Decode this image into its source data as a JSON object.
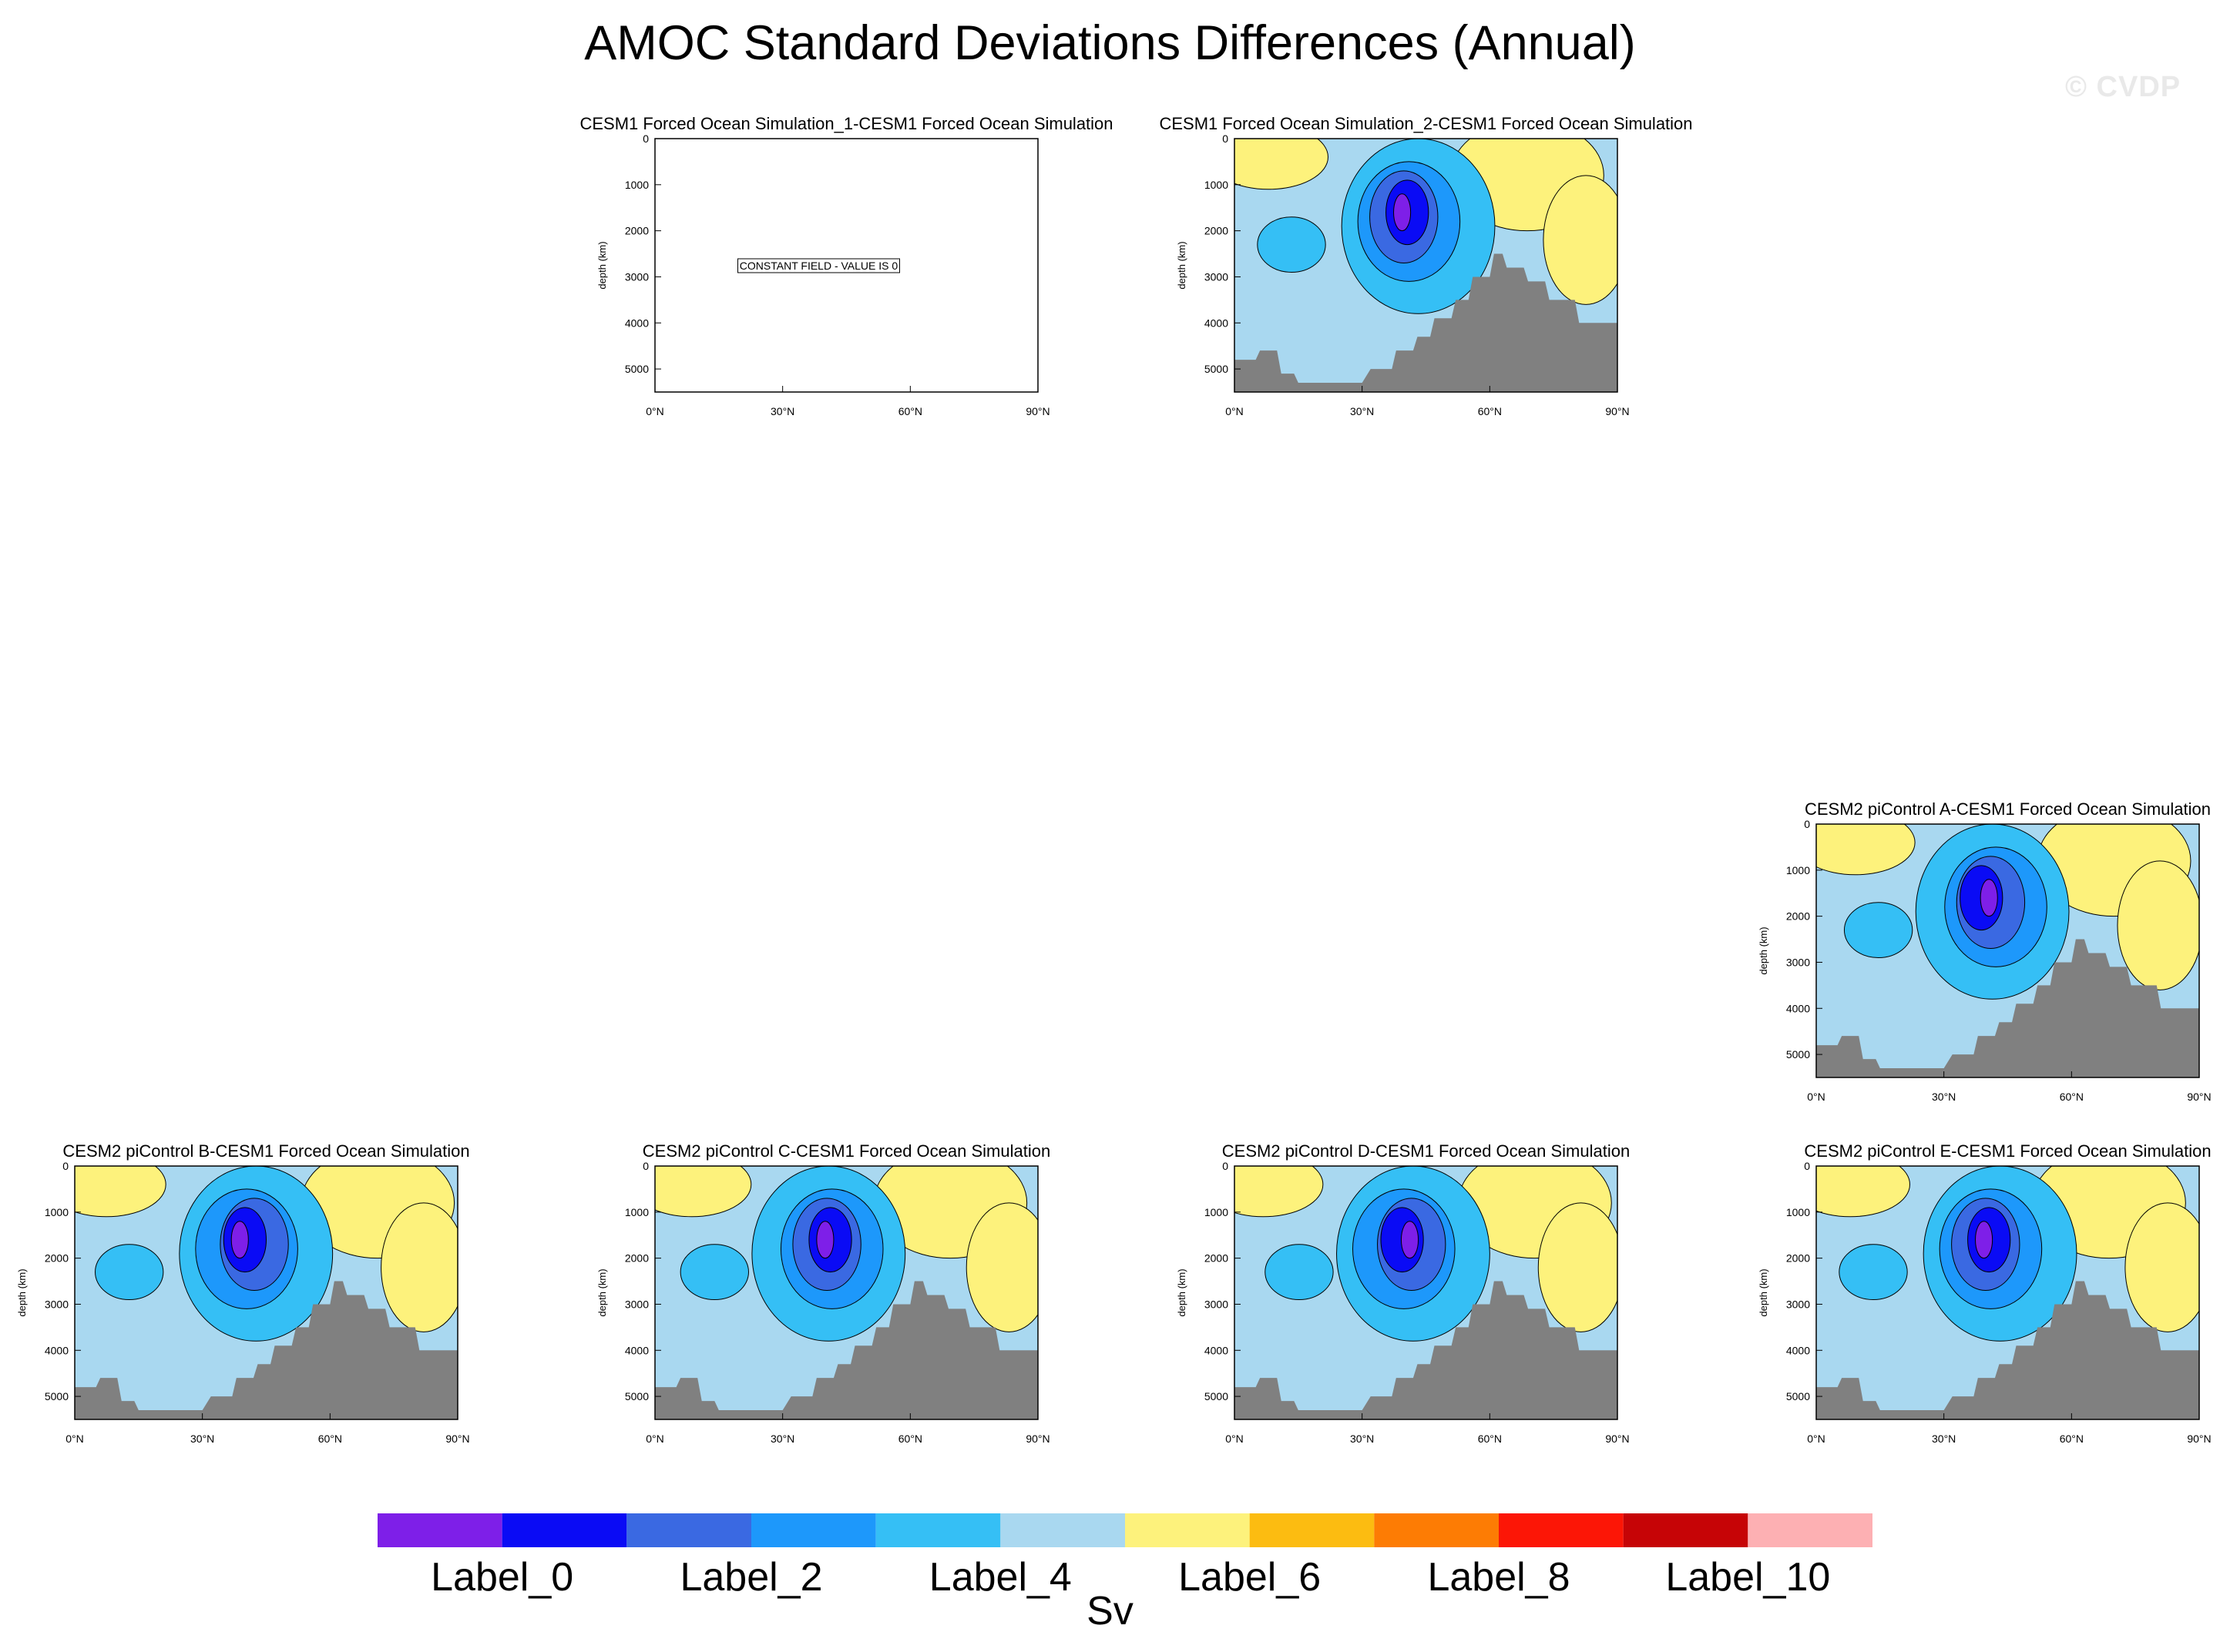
{
  "title": "AMOC Standard Deviations Differences (Annual)",
  "watermark": "© CVDP",
  "colors": {
    "fill_levels": [
      "#7e1fe8",
      "#0a0bf5",
      "#3a69e2",
      "#1d98fb",
      "#35bff5",
      "#a9d8f0",
      "#fdf27c",
      "#fcbc11",
      "#fd7c04",
      "#fc1606",
      "#c60406",
      "#fdb0b3"
    ],
    "land": "#808080",
    "contour_line": "#000000"
  },
  "chart_data": {
    "type": "contour",
    "units_label": "Sv",
    "colorbar": {
      "labels": [
        "Label_0",
        "Label_2",
        "Label_4",
        "Label_6",
        "Label_8",
        "Label_10"
      ],
      "n_boxes": 12
    },
    "axes": {
      "x_ticks": [
        "0°N",
        "30°N",
        "60°N",
        "90°N"
      ],
      "y_ticks": [
        "0",
        "1000",
        "2000",
        "3000",
        "4000",
        "5000"
      ],
      "y_label": "depth (km)",
      "xlim": [
        0,
        90
      ],
      "ylim": [
        5500,
        0
      ]
    },
    "panels": [
      {
        "title": "CESM1 Forced Ocean Simulation_1-CESM1 Forced Ocean Simulation",
        "constant": true,
        "message": "CONSTANT FIELD - VALUE IS 0"
      },
      {
        "title": "CESM1 Forced Ocean Simulation_2-CESM1 Forced Ocean Simulation",
        "constant": false
      },
      {
        "title": "CESM2 piControl A-CESM1 Forced Ocean Simulation",
        "constant": false
      },
      {
        "title": "CESM2 piControl B-CESM1 Forced Ocean Simulation",
        "constant": false
      },
      {
        "title": "CESM2 piControl C-CESM1 Forced Ocean Simulation",
        "constant": false
      },
      {
        "title": "CESM2 piControl D-CESM1 Forced Ocean Simulation",
        "constant": false
      },
      {
        "title": "CESM2 piControl E-CESM1 Forced Ocean Simulation",
        "constant": false
      }
    ],
    "bathymetry_depth": [
      [
        0,
        4800
      ],
      [
        5,
        4800
      ],
      [
        6,
        4600
      ],
      [
        10,
        4600
      ],
      [
        11,
        5100
      ],
      [
        14,
        5100
      ],
      [
        15,
        5300
      ],
      [
        30,
        5300
      ],
      [
        32,
        5000
      ],
      [
        37,
        5000
      ],
      [
        38,
        4600
      ],
      [
        42,
        4600
      ],
      [
        43,
        4300
      ],
      [
        46,
        4300
      ],
      [
        47,
        3900
      ],
      [
        51,
        3900
      ],
      [
        52,
        3500
      ],
      [
        55,
        3500
      ],
      [
        56,
        3000
      ],
      [
        60,
        3000
      ],
      [
        61,
        2500
      ],
      [
        63,
        2500
      ],
      [
        64,
        2800
      ],
      [
        68,
        2800
      ],
      [
        69,
        3100
      ],
      [
        73,
        3100
      ],
      [
        74,
        3500
      ],
      [
        80,
        3500
      ],
      [
        81,
        4000
      ],
      [
        90,
        4000
      ]
    ]
  }
}
